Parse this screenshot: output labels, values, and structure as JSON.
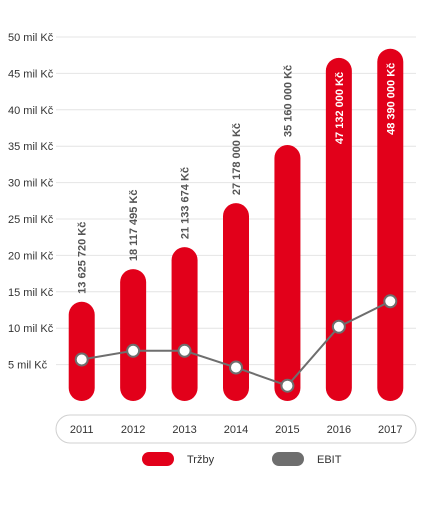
{
  "chart_data": {
    "type": "bar",
    "categories": [
      "2011",
      "2012",
      "2013",
      "2014",
      "2015",
      "2016",
      "2017"
    ],
    "series": [
      {
        "name": "Tržby",
        "type": "bar",
        "values": [
          13625720,
          18117495,
          21133674,
          27178000,
          35160000,
          47132000,
          48390000
        ],
        "labels": [
          "13 625 720 Kč",
          "18 117 495 Kč",
          "21 133 674 Kč",
          "27 178 000 Kč",
          "35 160 000 Kč",
          "47 132 000 Kč",
          "48 390 000 Kč"
        ],
        "color": "#e2001a"
      },
      {
        "name": "EBIT",
        "type": "line",
        "values": [
          5700000,
          6900000,
          6900000,
          4600000,
          2100000,
          10200000,
          13700000
        ],
        "color": "#6e6e6e"
      }
    ],
    "ylim": [
      0,
      50000000
    ],
    "yticks": [
      5000000,
      10000000,
      15000000,
      20000000,
      25000000,
      30000000,
      35000000,
      40000000,
      45000000,
      50000000
    ],
    "ytick_labels": [
      "5 mil Kč",
      "10 mil Kč",
      "15 mil Kč",
      "20 mil Kč",
      "25 mil Kč",
      "30 mil Kč",
      "35 mil Kč",
      "40 mil Kč",
      "45 mil Kč",
      "50 mil Kč"
    ],
    "grid": true,
    "legend": "bottom"
  }
}
